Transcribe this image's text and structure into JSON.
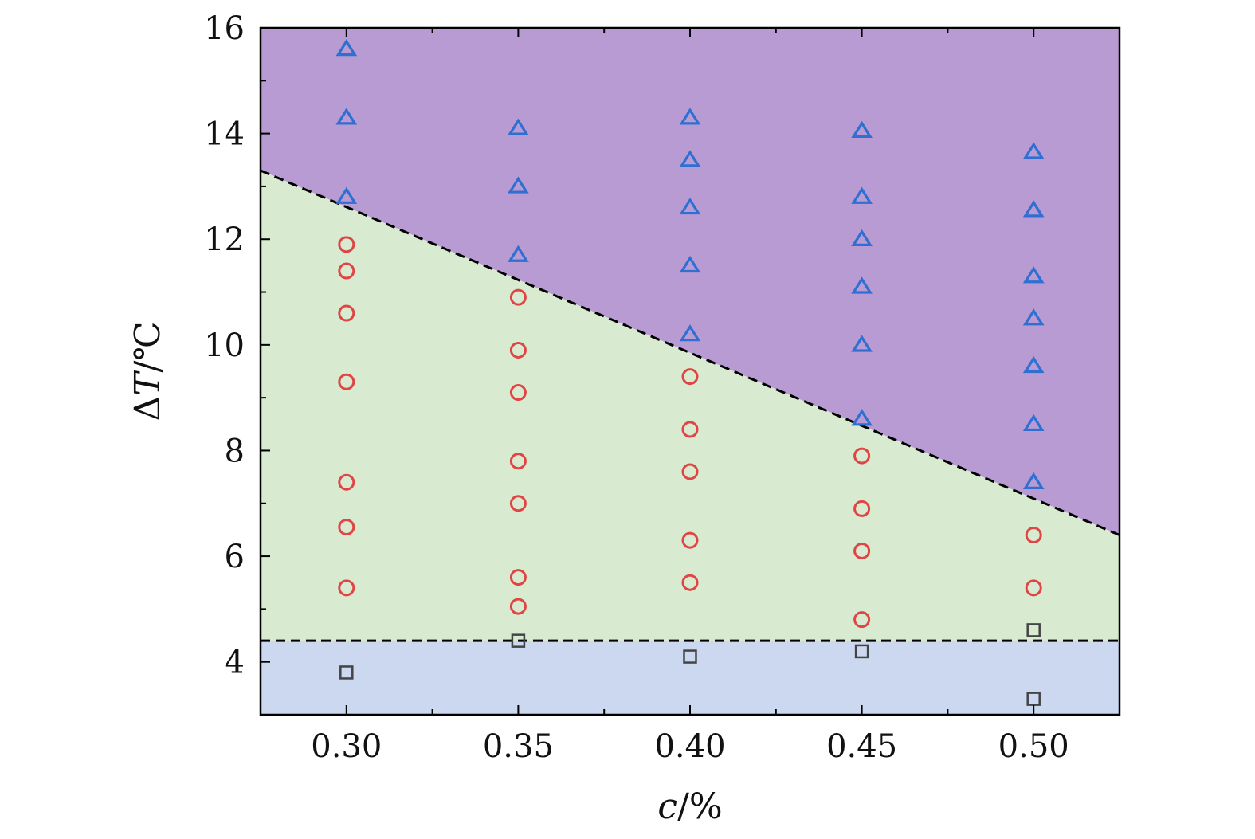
{
  "chart_data": {
    "type": "scatter",
    "x_axis": {
      "label_var": "c",
      "label_unit": "/%",
      "ticks": [
        0.3,
        0.35,
        0.4,
        0.45,
        0.5
      ],
      "tick_labels": [
        "0.30",
        "0.35",
        "0.40",
        "0.45",
        "0.50"
      ],
      "xlim": [
        0.275,
        0.525
      ]
    },
    "y_axis": {
      "label_prefix": "Δ",
      "label_var": "T",
      "label_unit": "/℃",
      "ticks": [
        4,
        6,
        8,
        10,
        12,
        14,
        16
      ],
      "tick_labels": [
        "4",
        "6",
        "8",
        "10",
        "12",
        "14",
        "16"
      ],
      "ylim": [
        3.0,
        16.0
      ]
    },
    "grid": false,
    "legend": "none",
    "regions": [
      {
        "id": "upper",
        "color": "#b89bd3"
      },
      {
        "id": "middle",
        "color": "#d8ead0"
      },
      {
        "id": "lower",
        "color": "#cbd8ef"
      }
    ],
    "boundaries": [
      {
        "id": "sloped",
        "points": [
          [
            0.275,
            13.3
          ],
          [
            0.525,
            6.4
          ]
        ],
        "style": "dashed"
      },
      {
        "id": "horizontal",
        "points": [
          [
            0.275,
            4.4
          ],
          [
            0.525,
            4.4
          ]
        ],
        "style": "dashed"
      }
    ],
    "series": [
      {
        "marker": "triangle",
        "color": "#2f6fd1",
        "points": [
          [
            0.3,
            15.6
          ],
          [
            0.3,
            14.3
          ],
          [
            0.3,
            12.8
          ],
          [
            0.35,
            14.1
          ],
          [
            0.35,
            13.0
          ],
          [
            0.35,
            11.7
          ],
          [
            0.4,
            14.3
          ],
          [
            0.4,
            13.5
          ],
          [
            0.4,
            12.6
          ],
          [
            0.4,
            11.5
          ],
          [
            0.4,
            10.2
          ],
          [
            0.45,
            14.05
          ],
          [
            0.45,
            12.8
          ],
          [
            0.45,
            12.0
          ],
          [
            0.45,
            11.1
          ],
          [
            0.45,
            10.0
          ],
          [
            0.45,
            8.6
          ],
          [
            0.5,
            13.65
          ],
          [
            0.5,
            12.55
          ],
          [
            0.5,
            11.3
          ],
          [
            0.5,
            10.5
          ],
          [
            0.5,
            9.6
          ],
          [
            0.5,
            8.5
          ],
          [
            0.5,
            7.4
          ]
        ]
      },
      {
        "marker": "circle",
        "color": "#e04545",
        "points": [
          [
            0.3,
            11.9
          ],
          [
            0.3,
            11.4
          ],
          [
            0.3,
            10.6
          ],
          [
            0.3,
            9.3
          ],
          [
            0.3,
            7.4
          ],
          [
            0.3,
            6.55
          ],
          [
            0.3,
            5.4
          ],
          [
            0.35,
            10.9
          ],
          [
            0.35,
            9.9
          ],
          [
            0.35,
            9.1
          ],
          [
            0.35,
            7.8
          ],
          [
            0.35,
            7.0
          ],
          [
            0.35,
            5.6
          ],
          [
            0.35,
            5.05
          ],
          [
            0.4,
            9.4
          ],
          [
            0.4,
            8.4
          ],
          [
            0.4,
            7.6
          ],
          [
            0.4,
            6.3
          ],
          [
            0.4,
            5.5
          ],
          [
            0.45,
            7.9
          ],
          [
            0.45,
            6.9
          ],
          [
            0.45,
            6.1
          ],
          [
            0.45,
            4.8
          ],
          [
            0.5,
            6.4
          ],
          [
            0.5,
            5.4
          ]
        ]
      },
      {
        "marker": "square",
        "color": "#444444",
        "points": [
          [
            0.3,
            3.8
          ],
          [
            0.35,
            4.4
          ],
          [
            0.4,
            4.1
          ],
          [
            0.45,
            4.2
          ],
          [
            0.5,
            4.6
          ],
          [
            0.5,
            3.3
          ]
        ]
      }
    ]
  }
}
